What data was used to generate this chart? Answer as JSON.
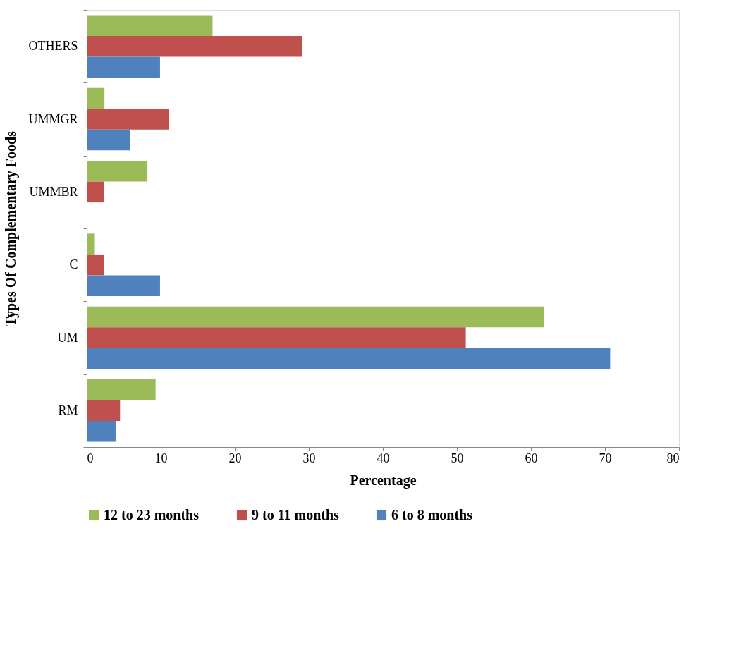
{
  "chart_data": {
    "type": "bar",
    "orientation": "horizontal",
    "xlabel": "Percentage",
    "ylabel": "Types Of Complementary Foods",
    "categories": [
      "OTHERS",
      "UMMGR",
      "UMMBR",
      "C",
      "UM",
      "RM"
    ],
    "series": [
      {
        "name": "12 to 23 months",
        "color": "#9bbb59",
        "values": [
          17.0,
          2.4,
          8.2,
          1.1,
          61.8,
          9.3
        ]
      },
      {
        "name": "9 to 11 months",
        "color": "#c0504d",
        "values": [
          29.1,
          11.1,
          2.3,
          2.3,
          51.2,
          4.5
        ]
      },
      {
        "name": "6 to  8 months",
        "color": "#4f81bd",
        "values": [
          9.9,
          5.9,
          null,
          9.9,
          70.7,
          3.9
        ]
      }
    ],
    "xlim": [
      0,
      80
    ],
    "xticks": [
      0,
      10,
      20,
      30,
      40,
      50,
      60,
      70,
      80
    ],
    "grid": false,
    "legend": "bottom"
  }
}
